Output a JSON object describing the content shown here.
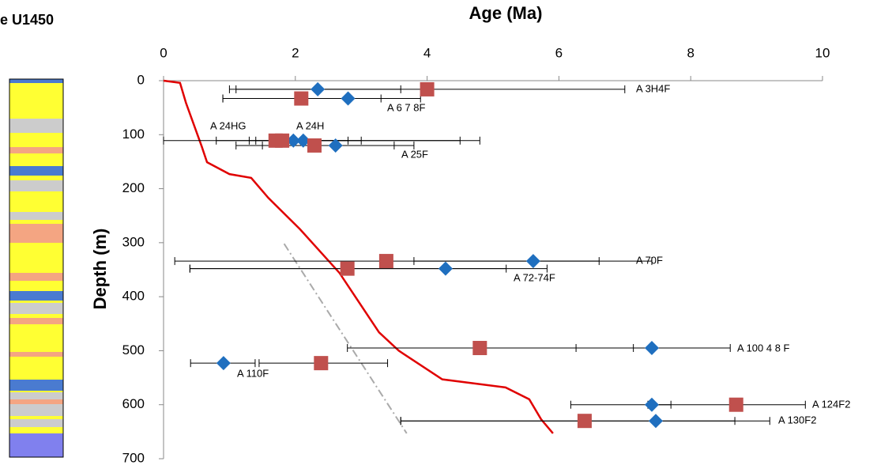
{
  "chart_data": {
    "type": "scatter",
    "title": "Age (Ma)",
    "corner_text": "e U1450",
    "ylabel": "Depth (m)",
    "xlim": [
      0,
      10
    ],
    "xticks": [
      0,
      2,
      4,
      6,
      8,
      10
    ],
    "ylim": [
      0,
      700
    ],
    "yticks": [
      0,
      100,
      200,
      300,
      400,
      500,
      600,
      700
    ],
    "y_inverted": true,
    "series": [
      {
        "marker": "diamond",
        "color": "#1f6fbf",
        "x": [
          2.34,
          2.8,
          1.97,
          2.12,
          2.61,
          5.61,
          4.28,
          7.41,
          0.91,
          7.41,
          7.47
        ],
        "y": [
          16,
          33,
          111,
          111,
          120,
          334,
          348,
          495,
          523,
          600,
          630
        ],
        "x_low": [
          1.0,
          0.9,
          0.8,
          1.3,
          1.1,
          3.8,
          0.4,
          6.26,
          0.41,
          6.18,
          3.6
        ],
        "x_high": [
          3.6,
          3.9,
          3.0,
          4.8,
          3.8,
          7.41,
          5.82,
          8.6,
          1.39,
          7.7,
          9.2
        ]
      },
      {
        "marker": "square",
        "color": "#c0504d",
        "x": [
          4.0,
          2.09,
          1.7,
          1.8,
          2.29,
          3.38,
          2.79,
          4.8,
          2.39,
          8.69,
          6.39
        ],
        "y": [
          16,
          33,
          111,
          111,
          120,
          334,
          348,
          495,
          523,
          600,
          630
        ],
        "x_low": [
          1.1,
          0.9,
          0,
          1.4,
          1.5,
          0.17,
          0.4,
          2.79,
          1.45,
          7.35,
          3.6
        ],
        "x_high": [
          7.0,
          3.3,
          4.5,
          2.8,
          3.5,
          6.61,
          5.2,
          7.13,
          3.4,
          9.74,
          8.67
        ]
      }
    ],
    "lines": [
      {
        "color": "#e00000",
        "style": "solid",
        "x": [
          0,
          0.25,
          0.34,
          0.58,
          0.66,
          1.0,
          1.33,
          1.59,
          2.07,
          2.67,
          3.27,
          3.57,
          4.23,
          5.19,
          5.55,
          5.73,
          5.91
        ],
        "y": [
          0,
          4,
          41,
          122,
          151,
          173,
          180,
          217,
          275,
          356,
          466,
          500,
          553,
          568,
          590,
          627,
          653
        ]
      },
      {
        "color": "#aaaaaa",
        "style": "dash-dot",
        "x": [
          1.83,
          3.69
        ],
        "y": [
          302,
          653
        ]
      }
    ],
    "annotations": [
      "A 3H4F",
      "A 6 7 8F",
      "A 24HG",
      "A 24H",
      "A 25F",
      "A 70F",
      "A 72-74F",
      "A 100 4 8 F",
      "A 110F",
      "A 124F2",
      "A 130F2"
    ]
  }
}
